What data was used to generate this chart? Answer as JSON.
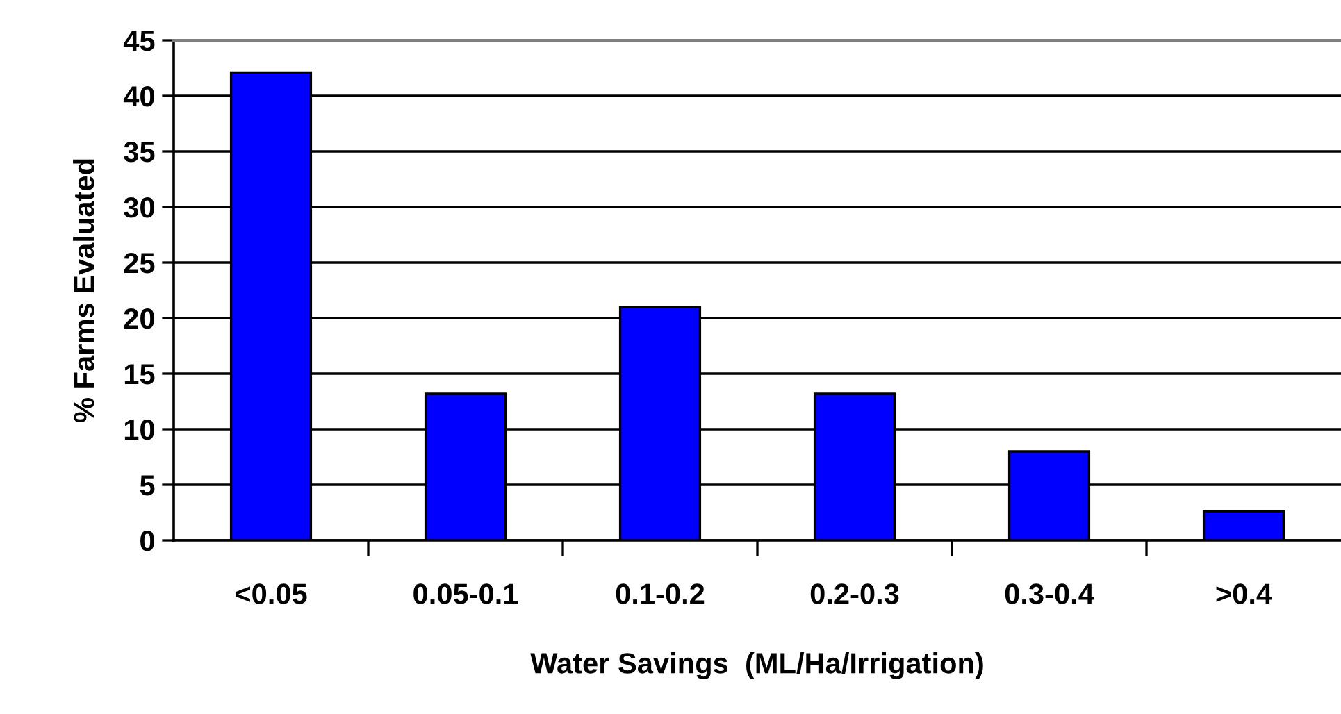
{
  "chart_data": {
    "type": "bar",
    "xlabel": "Water Savings  (ML/Ha/Irrigation)",
    "ylabel": "% Farms Evaluated",
    "categories": [
      "<0.05",
      "0.05-0.1",
      "0.1-0.2",
      "0.2-0.3",
      "0.3-0.4",
      ">0.4"
    ],
    "values": [
      42.1,
      13.2,
      21.0,
      13.2,
      8.0,
      2.6
    ],
    "color": "#0000ff",
    "ylim": [
      0,
      45
    ],
    "yticks": [
      0,
      5,
      10,
      15,
      20,
      25,
      30,
      35,
      40,
      45
    ],
    "grid": "y"
  }
}
